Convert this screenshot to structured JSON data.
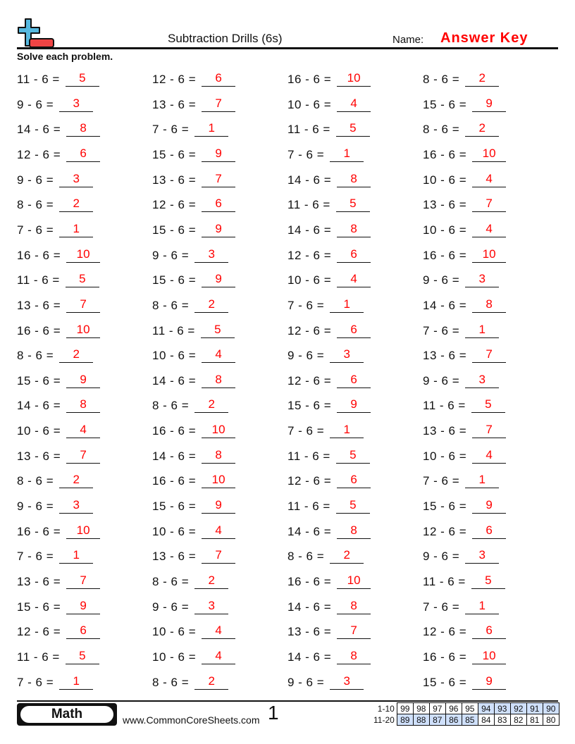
{
  "header": {
    "title": "Subtraction Drills (6s)",
    "name_label": "Name:",
    "answer_key": "Answer Key",
    "instructions": "Solve each problem.",
    "logo_colors": {
      "plus": "#56b9e0",
      "minus": "#ef4444"
    }
  },
  "problems": [
    [
      [
        11,
        5
      ],
      [
        12,
        6
      ],
      [
        16,
        10
      ],
      [
        8,
        2
      ]
    ],
    [
      [
        9,
        3
      ],
      [
        13,
        7
      ],
      [
        10,
        4
      ],
      [
        15,
        9
      ]
    ],
    [
      [
        14,
        8
      ],
      [
        7,
        1
      ],
      [
        11,
        5
      ],
      [
        8,
        2
      ]
    ],
    [
      [
        12,
        6
      ],
      [
        15,
        9
      ],
      [
        7,
        1
      ],
      [
        16,
        10
      ]
    ],
    [
      [
        9,
        3
      ],
      [
        13,
        7
      ],
      [
        14,
        8
      ],
      [
        10,
        4
      ]
    ],
    [
      [
        8,
        2
      ],
      [
        12,
        6
      ],
      [
        11,
        5
      ],
      [
        13,
        7
      ]
    ],
    [
      [
        7,
        1
      ],
      [
        15,
        9
      ],
      [
        14,
        8
      ],
      [
        10,
        4
      ]
    ],
    [
      [
        16,
        10
      ],
      [
        9,
        3
      ],
      [
        12,
        6
      ],
      [
        16,
        10
      ]
    ],
    [
      [
        11,
        5
      ],
      [
        15,
        9
      ],
      [
        10,
        4
      ],
      [
        9,
        3
      ]
    ],
    [
      [
        13,
        7
      ],
      [
        8,
        2
      ],
      [
        7,
        1
      ],
      [
        14,
        8
      ]
    ],
    [
      [
        16,
        10
      ],
      [
        11,
        5
      ],
      [
        12,
        6
      ],
      [
        7,
        1
      ]
    ],
    [
      [
        8,
        2
      ],
      [
        10,
        4
      ],
      [
        9,
        3
      ],
      [
        13,
        7
      ]
    ],
    [
      [
        15,
        9
      ],
      [
        14,
        8
      ],
      [
        12,
        6
      ],
      [
        9,
        3
      ]
    ],
    [
      [
        14,
        8
      ],
      [
        8,
        2
      ],
      [
        15,
        9
      ],
      [
        11,
        5
      ]
    ],
    [
      [
        10,
        4
      ],
      [
        16,
        10
      ],
      [
        7,
        1
      ],
      [
        13,
        7
      ]
    ],
    [
      [
        13,
        7
      ],
      [
        14,
        8
      ],
      [
        11,
        5
      ],
      [
        10,
        4
      ]
    ],
    [
      [
        8,
        2
      ],
      [
        16,
        10
      ],
      [
        12,
        6
      ],
      [
        7,
        1
      ]
    ],
    [
      [
        9,
        3
      ],
      [
        15,
        9
      ],
      [
        11,
        5
      ],
      [
        15,
        9
      ]
    ],
    [
      [
        16,
        10
      ],
      [
        10,
        4
      ],
      [
        14,
        8
      ],
      [
        12,
        6
      ]
    ],
    [
      [
        7,
        1
      ],
      [
        13,
        7
      ],
      [
        8,
        2
      ],
      [
        9,
        3
      ]
    ],
    [
      [
        13,
        7
      ],
      [
        8,
        2
      ],
      [
        16,
        10
      ],
      [
        11,
        5
      ]
    ],
    [
      [
        15,
        9
      ],
      [
        9,
        3
      ],
      [
        14,
        8
      ],
      [
        7,
        1
      ]
    ],
    [
      [
        12,
        6
      ],
      [
        10,
        4
      ],
      [
        13,
        7
      ],
      [
        12,
        6
      ]
    ],
    [
      [
        11,
        5
      ],
      [
        10,
        4
      ],
      [
        14,
        8
      ],
      [
        16,
        10
      ]
    ],
    [
      [
        7,
        1
      ],
      [
        8,
        2
      ],
      [
        9,
        3
      ],
      [
        15,
        9
      ]
    ]
  ],
  "subtrahend": 6,
  "answer_color": "#ff0000",
  "footer": {
    "subject": "Math",
    "site": "www.CommonCoreSheets.com",
    "page": "1",
    "score_rows": [
      {
        "label": "1-10",
        "scores": [
          "99",
          "98",
          "97",
          "96",
          "95",
          "94",
          "93",
          "92",
          "91",
          "90"
        ]
      },
      {
        "label": "11-20",
        "scores": [
          "89",
          "88",
          "87",
          "86",
          "85",
          "84",
          "83",
          "82",
          "81",
          "80"
        ]
      }
    ],
    "highlight_color": "#cfe0fb"
  }
}
